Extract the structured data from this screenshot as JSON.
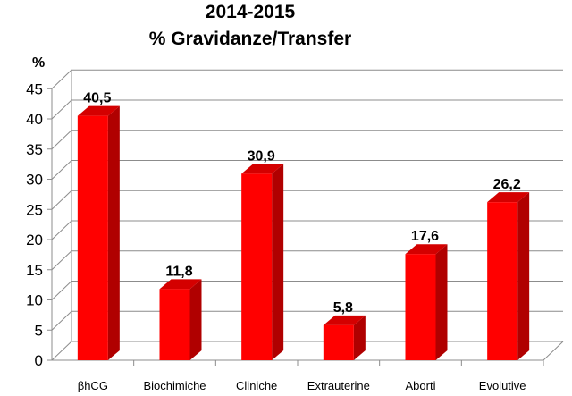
{
  "title_line_1": "2014-2015",
  "title_line_2": "% Gravidanze/Transfer",
  "y_unit": "%",
  "colors": {
    "bar_front": "#ff0000",
    "bar_side": "#b00000",
    "bar_top": "#d40000",
    "grid": "#8c8c8c",
    "axis": "#8c8c8c"
  },
  "chart_data": {
    "type": "bar",
    "categories": [
      "βhCG",
      "Biochimiche",
      "Cliniche",
      "Extrauterine",
      "Aborti",
      "Evolutive"
    ],
    "values": [
      40.5,
      11.8,
      30.9,
      5.8,
      17.6,
      26.2
    ],
    "value_labels": [
      "40,5",
      "11,8",
      "30,9",
      "5,8",
      "17,6",
      "26,2"
    ],
    "yticks": [
      0,
      5,
      10,
      15,
      20,
      25,
      30,
      35,
      40,
      45
    ],
    "ylim": [
      0,
      45
    ],
    "title": "2014-2015 % Gravidanze/Transfer",
    "ylabel": "%",
    "xlabel": "",
    "grid": true,
    "style": "3d"
  }
}
